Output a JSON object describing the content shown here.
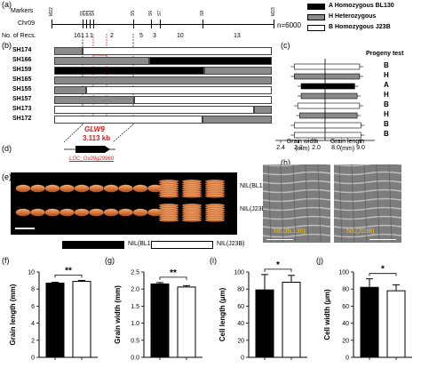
{
  "panels": {
    "a": "(a)",
    "b": "(b)",
    "c": "(c)",
    "d": "(d)",
    "e": "(e)",
    "f": "(f)",
    "g": "(g)",
    "h": "(h)",
    "i": "(i)",
    "j": "(j)"
  },
  "map": {
    "labels": [
      "Markers",
      "Chr09",
      "No. of Recs."
    ],
    "n_label": "n=6000",
    "markers": [
      "M22",
      "S1",
      "S2",
      "S3",
      "S4",
      "S5",
      "S6",
      "S7",
      "S8",
      "M23"
    ],
    "recs": [
      "16",
      "1",
      "1",
      "1",
      "2",
      "5",
      "3",
      "10",
      "13"
    ]
  },
  "legend_genotype": [
    {
      "code": "A",
      "text": "A Homozygous BL130",
      "color": "#000000"
    },
    {
      "code": "H",
      "text": "H Heterozygous",
      "color": "#8a8a8a"
    },
    {
      "code": "B",
      "text": "B Homozygous J23B",
      "color": "#ffffff"
    }
  ],
  "lines": [
    {
      "name": "SH174",
      "progeny": "B"
    },
    {
      "name": "SH166",
      "progeny": "H"
    },
    {
      "name": "SH159",
      "progeny": "A"
    },
    {
      "name": "SH165",
      "progeny": "H"
    },
    {
      "name": "SH155",
      "progeny": "B"
    },
    {
      "name": "SH157",
      "progeny": "H"
    },
    {
      "name": "SH173",
      "progeny": "B"
    },
    {
      "name": "SH172",
      "progeny": "B"
    }
  ],
  "progeny_header": "Progeny test",
  "gene": {
    "name": "GLW9",
    "size": "3.113 kb",
    "locus": "LOC_Os09g29960"
  },
  "panel_c": {
    "xlabel_left": "Grain width\n(mm)",
    "xlabel_right": "Grain length\n(mm)",
    "ticks_left": [
      "2.4",
      "2.2",
      "2.0"
    ],
    "ticks_right": [
      "8.0",
      "9.0"
    ]
  },
  "nil_labels": {
    "e_top": "NIL(BL130)",
    "e_bottom": "NIL(J23B)",
    "h_left": "NIL(BL130)",
    "h_right": "NIL(J23B)"
  },
  "legend_nil": [
    {
      "text": "NIL(BL130)",
      "color": "#000000"
    },
    {
      "text": "NIL(J23B)",
      "color": "#ffffff"
    }
  ],
  "chart_data": [
    {
      "type": "bar",
      "panel": "f",
      "categories": [
        "NIL(BL130)",
        "NIL(J23B)"
      ],
      "values": [
        8.7,
        8.9
      ],
      "errors": [
        0.1,
        0.12
      ],
      "ylabel": "Grain length (mm)",
      "ylim": [
        0,
        10
      ],
      "yticks": [
        "0",
        "2",
        "4",
        "6",
        "8",
        "10"
      ],
      "significance": "**"
    },
    {
      "type": "bar",
      "panel": "g",
      "categories": [
        "NIL(BL130)",
        "NIL(J23B)"
      ],
      "values": [
        2.15,
        2.06
      ],
      "errors": [
        0.04,
        0.04
      ],
      "ylabel": "Grain width (mm)",
      "ylim": [
        0,
        2.5
      ],
      "yticks": [
        "0.0",
        "0.5",
        "1.0",
        "1.5",
        "2.0",
        "2.5"
      ],
      "significance": "**"
    },
    {
      "type": "bar",
      "panel": "i",
      "categories": [
        "NIL(BL130)",
        "NIL(J23B)"
      ],
      "values": [
        79,
        88
      ],
      "errors": [
        18,
        8
      ],
      "ylabel": "Cell length (μm)",
      "ylim": [
        0,
        100
      ],
      "yticks": [
        "0",
        "20",
        "40",
        "60",
        "80",
        "100"
      ],
      "significance": "*"
    },
    {
      "type": "bar",
      "panel": "j",
      "categories": [
        "NIL(BL130)",
        "NIL(J23B)"
      ],
      "values": [
        82,
        78
      ],
      "errors": [
        10,
        7
      ],
      "ylabel": "Cell width (μm)",
      "ylim": [
        0,
        100
      ],
      "yticks": [
        "0",
        "20",
        "40",
        "60",
        "80",
        "100"
      ],
      "significance": "*"
    }
  ]
}
